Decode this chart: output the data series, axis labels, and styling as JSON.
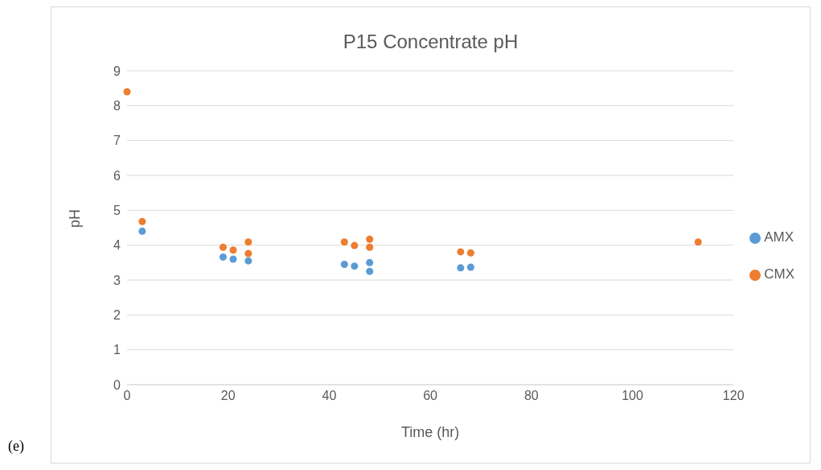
{
  "chart_data": {
    "type": "scatter",
    "title": "P15 Concentrate pH",
    "xlabel": "Time (hr)",
    "ylabel": "pH",
    "series": [
      {
        "name": "AMX",
        "color": "#5b9bd5",
        "x": [
          3,
          19,
          21,
          24,
          43,
          45,
          48,
          48,
          66,
          68
        ],
        "values": [
          4.4,
          3.66,
          3.6,
          3.55,
          3.45,
          3.4,
          3.5,
          3.25,
          3.35,
          3.37
        ]
      },
      {
        "name": "CMX",
        "color": "#ed7d31",
        "x": [
          0,
          3,
          19,
          21,
          24,
          24,
          43,
          45,
          48,
          48,
          66,
          68,
          113
        ],
        "values": [
          8.4,
          4.68,
          3.94,
          3.86,
          4.09,
          3.76,
          4.09,
          3.99,
          4.17,
          3.94,
          3.81,
          3.78,
          4.09
        ]
      }
    ],
    "xlim": [
      0,
      120
    ],
    "xticks": [
      0,
      20,
      40,
      60,
      80,
      100,
      120
    ],
    "ylim": [
      0,
      9
    ],
    "yticks": [
      0,
      1,
      2,
      3,
      4,
      5,
      6,
      7,
      8,
      9
    ],
    "grid": "y",
    "legend": "right",
    "marker": "circle",
    "annotations": [
      "(e)"
    ]
  }
}
